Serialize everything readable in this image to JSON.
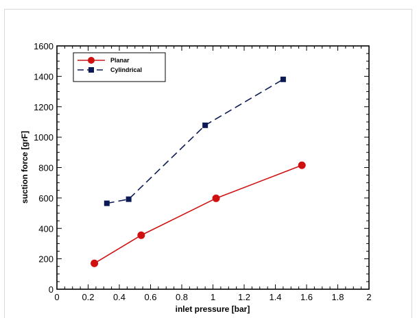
{
  "chart_data": {
    "type": "line",
    "xlabel": "inlet pressure [bar]",
    "ylabel": "suction force [grF]",
    "xlim": [
      0,
      2
    ],
    "ylim": [
      0,
      1600
    ],
    "x_ticks": [
      "0",
      "0.2",
      "0.4",
      "0.6",
      "0.8",
      "1",
      "1.2",
      "1.4",
      "1.6",
      "1.8",
      "2"
    ],
    "y_ticks": [
      "0",
      "200",
      "400",
      "600",
      "800",
      "1000",
      "1200",
      "1400",
      "1600"
    ],
    "grid": false,
    "legend_position": "top-left",
    "series": [
      {
        "name": "Planar",
        "color": "#d01010",
        "line_style": "solid",
        "marker": "circle",
        "x": [
          0.24,
          0.54,
          1.02,
          1.57
        ],
        "y": [
          170,
          355,
          598,
          815
        ]
      },
      {
        "name": "Cylindrical",
        "color": "#0b1a55",
        "line_style": "dashed",
        "marker": "square",
        "x": [
          0.32,
          0.46,
          0.95,
          1.45
        ],
        "y": [
          565,
          592,
          1078,
          1380
        ]
      }
    ]
  }
}
